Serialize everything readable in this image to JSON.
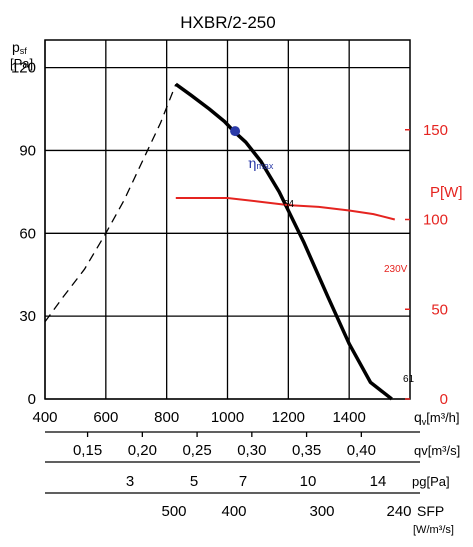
{
  "colors": {
    "pressure_curve": "#000000",
    "power_curve": "#e52420",
    "eta_marker": "#2b3aa8",
    "grid": "#000000"
  },
  "chart_data": {
    "type": "line",
    "title": "HXBR/2-250",
    "y_axis_label": {
      "main": "p",
      "sub": "sf",
      "unit": "[Pa]"
    },
    "power_axis_label": "P[W]",
    "x": {
      "label_main": "q",
      "label_sub": "v",
      "label_unit": "[m³/h]",
      "range": [
        400,
        1600
      ],
      "ticks": [
        400,
        600,
        800,
        1000,
        1200,
        1400
      ]
    },
    "y": {
      "range": [
        0,
        130
      ],
      "ticks": [
        0,
        30,
        60,
        90,
        120
      ]
    },
    "y2": {
      "range": [
        0,
        200
      ],
      "ticks": [
        0,
        50,
        100,
        150
      ]
    },
    "series": [
      {
        "id": "pressure",
        "x": [
          830,
          880,
          940,
          990,
          1020,
          1060,
          1110,
          1170,
          1250,
          1330,
          1400,
          1470,
          1540
        ],
        "y": [
          114,
          110,
          105,
          100.5,
          97,
          93,
          86,
          75,
          57,
          37,
          20,
          6,
          0
        ],
        "end_label": "64",
        "axis": "y"
      },
      {
        "id": "pressure-extrapolated",
        "x": [
          400,
          460,
          530,
          600,
          660,
          720,
          780,
          830
        ],
        "y": [
          28,
          37,
          47,
          60,
          72,
          86,
          100,
          114
        ],
        "style": "dashed",
        "axis": "y"
      },
      {
        "id": "power",
        "name": "230V",
        "x": [
          830,
          900,
          1000,
          1100,
          1200,
          1300,
          1400,
          1480,
          1550
        ],
        "y": [
          112,
          112,
          112,
          110,
          108,
          107,
          105,
          103,
          100
        ],
        "axis": "y2"
      }
    ],
    "eta_max": {
      "label": "η",
      "label_sub": "max",
      "x": 1025,
      "y": 97
    },
    "power_end_label": "61",
    "secondary_scales": [
      {
        "label": "qv[m³/s]",
        "ticks": [
          "0,15",
          "0,20",
          "0,25",
          "0,30",
          "0,35",
          "0,40"
        ],
        "values": [
          0.15,
          0.2,
          0.25,
          0.3,
          0.35,
          0.4
        ]
      },
      {
        "label": "pg[Pa]",
        "ticks": [
          "3",
          "5",
          "7",
          "10",
          "14"
        ]
      },
      {
        "label_main": "SFP",
        "label_unit": "[W/m³/s]",
        "ticks": [
          "500",
          "400",
          "300",
          "240"
        ]
      }
    ]
  }
}
